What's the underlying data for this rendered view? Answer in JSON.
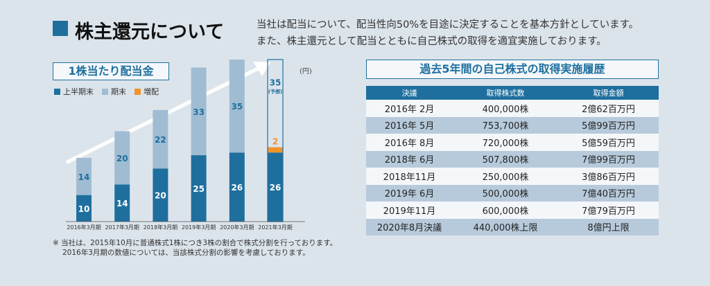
{
  "header": {
    "title": "株主還元について",
    "intro_line1": "当社は配当について、配当性向50%を目途に決定することを基本方針としています。",
    "intro_line2": "また、株主還元として配当とともに自己株式の取得を適宜実施しております。"
  },
  "dividend_panel": {
    "title": "1株当たり配当金",
    "unit": "(円)",
    "legend": [
      {
        "label": "上半期末",
        "color": "#1f6f9e"
      },
      {
        "label": "期末",
        "color": "#9fbcd3"
      },
      {
        "label": "増配",
        "color": "#f0932b"
      }
    ],
    "notes": [
      "※ 当社は、2015年10月に普通株式1株につき3株の割合で株式分割を行っております。",
      "2016年3月期の数値については、当該株式分割の影響を考慮しております。"
    ]
  },
  "chart_data": {
    "type": "bar",
    "stacked": true,
    "categories": [
      "2016年3月期",
      "2017年3月期",
      "2018年3月期",
      "2019年3月期",
      "2020年3月期",
      "2021年3月期"
    ],
    "series": [
      {
        "name": "上半期末",
        "values": [
          10,
          14,
          20,
          25,
          26,
          26
        ],
        "color": "#1f6f9e"
      },
      {
        "name": "期末",
        "values": [
          14,
          20,
          22,
          33,
          35,
          null
        ],
        "color": "#9fbcd3"
      },
      {
        "name": "増配",
        "values": [
          null,
          null,
          null,
          null,
          null,
          2
        ],
        "color": "#f0932b"
      }
    ],
    "forecast": {
      "category": "2021年3月期",
      "value": 35,
      "label": "35",
      "sub_label": "(予想)"
    },
    "ylabel": "(円)",
    "ylim": [
      0,
      61
    ]
  },
  "buyback_panel": {
    "title": "過去5年間の自己株式の取得実施履歴",
    "columns": [
      "決議",
      "取得株式数",
      "取得金額"
    ],
    "rows": [
      [
        "2016年 2月",
        "400,000株",
        "2億62百万円"
      ],
      [
        "2016年 5月",
        "753,700株",
        "5億99百万円"
      ],
      [
        "2016年 8月",
        "720,000株",
        "5億59百万円"
      ],
      [
        "2018年 6月",
        "507,800株",
        "7億99百万円"
      ],
      [
        "2018年11月",
        "250,000株",
        "3億86百万円"
      ],
      [
        "2019年 6月",
        "500,000株",
        "7億40百万円"
      ],
      [
        "2019年11月",
        "600,000株",
        "7億79百万円"
      ],
      [
        "2020年8月決議",
        "440,000株上限",
        "8億円上限"
      ]
    ]
  }
}
